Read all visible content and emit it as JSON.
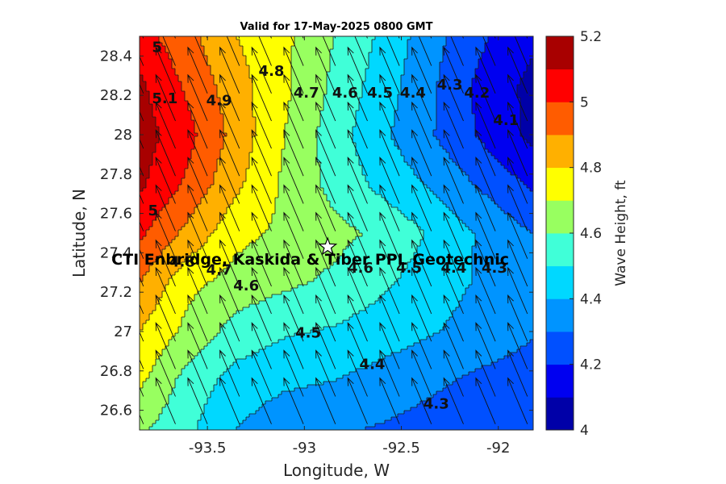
{
  "chart_data": {
    "type": "contour",
    "title": "Valid for 17-May-2025 0800 GMT",
    "xlabel": "Longitude, W",
    "ylabel": "Latitude, N",
    "xlim": [
      -93.85,
      -91.82
    ],
    "ylim": [
      26.5,
      28.5
    ],
    "xticks": [
      -93.5,
      -93,
      -92.5,
      -92
    ],
    "xtick_labels": [
      "-93.5",
      "-93",
      "-92.5",
      "-92"
    ],
    "yticks": [
      26.6,
      26.8,
      27.0,
      27.2,
      27.4,
      27.6,
      27.8,
      28.0,
      28.2,
      28.4
    ],
    "ytick_labels": [
      "26.6",
      "26.8",
      "27",
      "27.2",
      "27.4",
      "27.6",
      "27.8",
      "28",
      "28.2",
      "28.4"
    ],
    "colorbar": {
      "label": "Wave Height, ft",
      "range": [
        4.0,
        5.2
      ],
      "levels": [
        4.0,
        4.1,
        4.2,
        4.3,
        4.4,
        4.5,
        4.6,
        4.7,
        4.8,
        4.9,
        5.0,
        5.1,
        5.2
      ],
      "colors": [
        "#0000A8",
        "#0000F0",
        "#0050FF",
        "#0094FF",
        "#00D8FF",
        "#40FFD8",
        "#98FF60",
        "#FFFF00",
        "#FFB000",
        "#FF5C00",
        "#FF0000",
        "#A80000"
      ],
      "tick_values": [
        4.0,
        4.2,
        4.4,
        4.6,
        4.8,
        5.0,
        5.2
      ],
      "tick_labels": [
        "4",
        "4.2",
        "4.4",
        "4.6",
        "4.8",
        "5",
        "5.2"
      ]
    },
    "grid_lon": [
      -93.85,
      -93.6,
      -93.35,
      -93.1,
      -92.85,
      -92.6,
      -92.35,
      -92.1,
      -91.82
    ],
    "grid_lat": [
      26.5,
      26.75,
      27.0,
      27.25,
      27.5,
      27.75,
      28.0,
      28.25,
      28.5
    ],
    "wave_height": [
      [
        4.62,
        4.52,
        4.4,
        4.33,
        4.31,
        4.29,
        4.26,
        4.23,
        4.21
      ],
      [
        4.72,
        4.56,
        4.46,
        4.42,
        4.4,
        4.36,
        4.32,
        4.28,
        4.25
      ],
      [
        4.8,
        4.67,
        4.56,
        4.51,
        4.49,
        4.45,
        4.41,
        4.36,
        4.31
      ],
      [
        4.9,
        4.73,
        4.66,
        4.62,
        4.58,
        4.52,
        4.45,
        4.39,
        4.34
      ],
      [
        5.02,
        4.87,
        4.73,
        4.68,
        4.63,
        4.58,
        4.49,
        4.39,
        4.3
      ],
      [
        5.12,
        4.98,
        4.82,
        4.68,
        4.57,
        4.47,
        4.39,
        4.29,
        4.18
      ],
      [
        5.15,
        5.03,
        4.86,
        4.7,
        4.55,
        4.42,
        4.31,
        4.19,
        4.07
      ],
      [
        5.12,
        4.98,
        4.84,
        4.72,
        4.58,
        4.45,
        4.32,
        4.18,
        4.07
      ],
      [
        5.04,
        4.93,
        4.8,
        4.72,
        4.6,
        4.48,
        4.34,
        4.22,
        4.12
      ]
    ],
    "wave_direction": "arrows pointing north-northwest (approximately from the south-southeast)",
    "contour_labels": [
      {
        "text": "5",
        "lon": -93.76,
        "lat": 28.44
      },
      {
        "text": "5.1",
        "lon": -93.72,
        "lat": 28.18
      },
      {
        "text": "4.9",
        "lon": -93.44,
        "lat": 28.17
      },
      {
        "text": "4.8",
        "lon": -93.17,
        "lat": 28.32
      },
      {
        "text": "4.7",
        "lon": -92.99,
        "lat": 28.21
      },
      {
        "text": "4.6",
        "lon": -92.79,
        "lat": 28.21
      },
      {
        "text": "4.5",
        "lon": -92.61,
        "lat": 28.21
      },
      {
        "text": "4.4",
        "lon": -92.44,
        "lat": 28.21
      },
      {
        "text": "4.3",
        "lon": -92.25,
        "lat": 28.25
      },
      {
        "text": "4.2",
        "lon": -92.11,
        "lat": 28.21
      },
      {
        "text": "4.1",
        "lon": -91.96,
        "lat": 28.07
      },
      {
        "text": "5",
        "lon": -93.78,
        "lat": 27.61
      },
      {
        "text": "4.8",
        "lon": -93.63,
        "lat": 27.35
      },
      {
        "text": "4.7",
        "lon": -93.44,
        "lat": 27.31
      },
      {
        "text": "4.6",
        "lon": -92.71,
        "lat": 27.32
      },
      {
        "text": "4.5",
        "lon": -92.46,
        "lat": 27.32
      },
      {
        "text": "4.4",
        "lon": -92.23,
        "lat": 27.32
      },
      {
        "text": "4.3",
        "lon": -92.02,
        "lat": 27.32
      },
      {
        "text": "4.6",
        "lon": -93.3,
        "lat": 27.23
      },
      {
        "text": "4.5",
        "lon": -92.98,
        "lat": 26.99
      },
      {
        "text": "4.4",
        "lon": -92.65,
        "lat": 26.83
      },
      {
        "text": "4.3",
        "lon": -92.32,
        "lat": 26.63
      }
    ],
    "annotation": {
      "text": "CTI Enbridge, Kaskida & Tiber PPL Geotechnic",
      "lon": -92.88,
      "lat": 27.43,
      "marker": "star"
    }
  }
}
